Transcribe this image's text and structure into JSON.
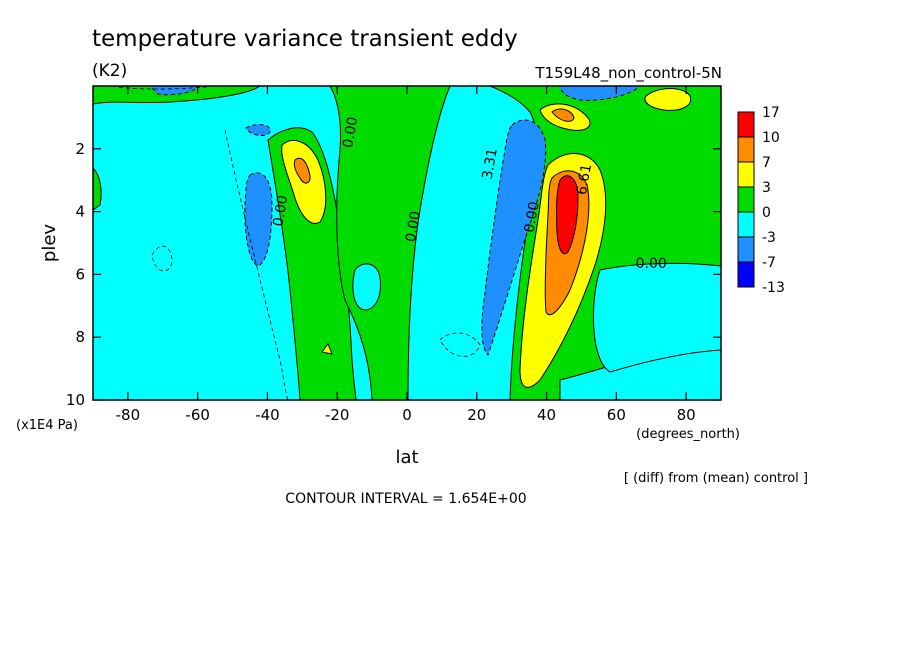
{
  "chart_data": {
    "type": "heatmap",
    "subtype": "filled-contour",
    "title": "temperature variance transient eddy",
    "units": "(K2)",
    "run_label": "T159L48_non_control-5N",
    "xlabel": "lat",
    "x_units": "(degrees_north)",
    "ylabel": "plev",
    "y_units": "(x1E4 Pa)",
    "xlim": [
      -90,
      90
    ],
    "ylim": [
      10,
      0
    ],
    "x_ticks": [
      -80,
      -60,
      -40,
      -20,
      0,
      20,
      40,
      60,
      80
    ],
    "x_tick_labels": [
      "-80",
      "-60",
      "-40",
      "-20",
      "0",
      "20",
      "40",
      "60",
      "80"
    ],
    "y_ticks": [
      2,
      4,
      6,
      8,
      10
    ],
    "y_tick_labels": [
      "2",
      "4",
      "6",
      "8",
      "10"
    ],
    "contour_interval_text": "CONTOUR INTERVAL = 1.654E+00",
    "contour_labels": [
      {
        "text": "0.00",
        "lat": -35,
        "plev": 4.0
      },
      {
        "text": "0.00",
        "lat": -15,
        "plev": 1.5
      },
      {
        "text": "0.00",
        "lat": 3,
        "plev": 4.5
      },
      {
        "text": "3.31",
        "lat": 25,
        "plev": 2.5
      },
      {
        "text": "0.00",
        "lat": 37,
        "plev": 4.2
      },
      {
        "text": "6.61",
        "lat": 52,
        "plev": 3.0
      },
      {
        "text": "0.00",
        "lat": 70,
        "plev": 5.8
      }
    ],
    "legend": {
      "placement": "right",
      "levels": [
        "17",
        "10",
        "7",
        "3",
        "0",
        "-3",
        "-7",
        "-13"
      ],
      "colors": [
        "#ff0000",
        "#ff8c00",
        "#ffff00",
        "#00dc00",
        "#00ffff",
        "#1e90ff",
        "#0000ff"
      ]
    },
    "footnote": "[ (diff) from (mean) control ]",
    "cells": [
      {
        "lat": 45,
        "plev": 4.0,
        "value": 12
      },
      {
        "lat": 45,
        "plev": 5.5,
        "value": 8
      },
      {
        "lat": -30,
        "plev": 3.0,
        "value": 4
      },
      {
        "lat": 75,
        "plev": 0.8,
        "value": 4
      },
      {
        "lat": 30,
        "plev": 3.0,
        "value": -5
      },
      {
        "lat": -45,
        "plev": 4.5,
        "value": -4
      }
    ]
  }
}
